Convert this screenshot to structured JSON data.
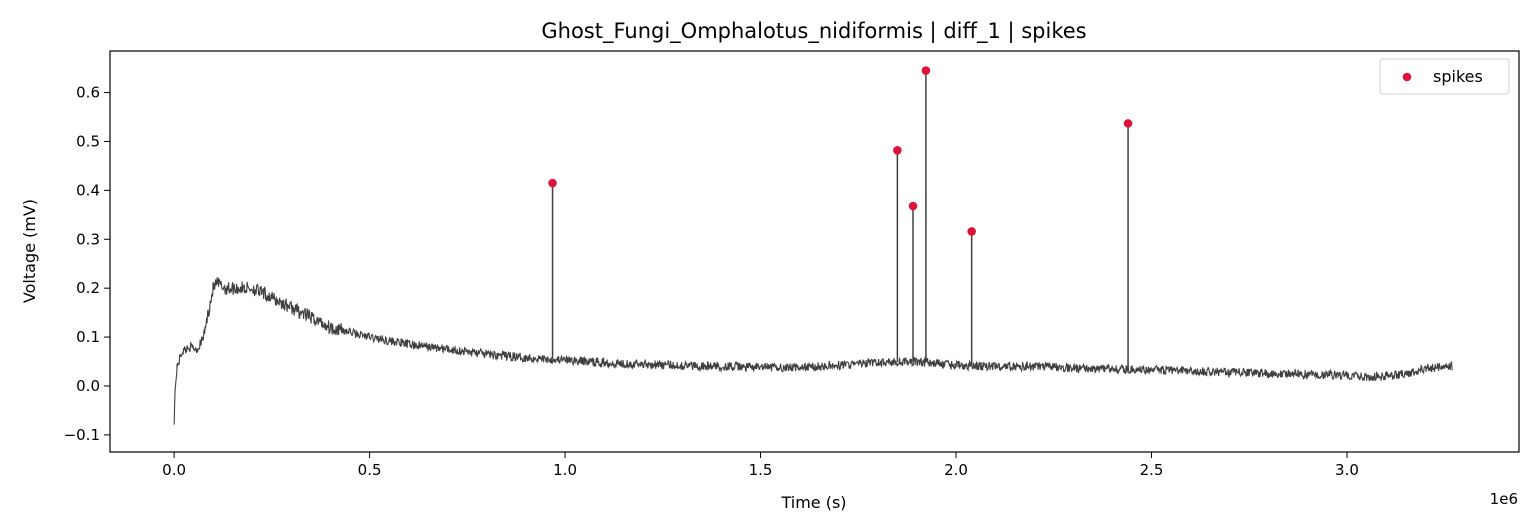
{
  "chart_data": {
    "type": "line",
    "title": "Ghost_Fungi_Omphalotus_nidiformis | diff_1 | spikes",
    "xlabel": "Time (s)",
    "ylabel": "Voltage (mV)",
    "x_offset_label": "1e6",
    "xlim": [
      -0.164,
      3.44
    ],
    "ylim": [
      -0.135,
      0.685
    ],
    "x_ticks": [
      0.0,
      0.5,
      1.0,
      1.5,
      2.0,
      2.5,
      3.0
    ],
    "x_tick_labels": [
      "0.0",
      "0.5",
      "1.0",
      "1.5",
      "2.0",
      "2.5",
      "3.0"
    ],
    "y_ticks": [
      -0.1,
      0.0,
      0.1,
      0.2,
      0.3,
      0.4,
      0.5,
      0.6
    ],
    "y_tick_labels": [
      "−0.1",
      "0.0",
      "0.1",
      "0.2",
      "0.3",
      "0.4",
      "0.5",
      "0.6"
    ],
    "grid": false,
    "legend_position": "top-right",
    "colors": {
      "signal": "#404040",
      "spikes": "#dc143c"
    },
    "series": [
      {
        "type": "line",
        "x": [
          0.0,
          0.003,
          0.008,
          0.02,
          0.04,
          0.06,
          0.075,
          0.09,
          0.1,
          0.11,
          0.13,
          0.16,
          0.2,
          0.25,
          0.3,
          0.35,
          0.4,
          0.5,
          0.6,
          0.7,
          0.8,
          0.9,
          1.0,
          1.1,
          1.2,
          1.3,
          1.4,
          1.5,
          1.6,
          1.7,
          1.8,
          1.9,
          2.0,
          2.1,
          2.2,
          2.3,
          2.4,
          2.5,
          2.6,
          2.7,
          2.8,
          2.9,
          3.0,
          3.05,
          3.1,
          3.15,
          3.2,
          3.25,
          3.27
        ],
        "values": [
          -0.07,
          0.0,
          0.04,
          0.07,
          0.08,
          0.075,
          0.1,
          0.16,
          0.2,
          0.21,
          0.2,
          0.2,
          0.2,
          0.18,
          0.16,
          0.14,
          0.12,
          0.1,
          0.085,
          0.075,
          0.065,
          0.058,
          0.053,
          0.048,
          0.045,
          0.042,
          0.04,
          0.038,
          0.038,
          0.042,
          0.048,
          0.05,
          0.042,
          0.04,
          0.04,
          0.037,
          0.035,
          0.033,
          0.03,
          0.028,
          0.026,
          0.024,
          0.022,
          0.018,
          0.02,
          0.025,
          0.035,
          0.04,
          0.04
        ]
      },
      {
        "type": "scatter",
        "name": "spikes",
        "x": [
          0.968,
          1.85,
          1.89,
          1.923,
          2.04,
          2.44
        ],
        "values": [
          0.415,
          0.482,
          0.368,
          0.645,
          0.316,
          0.537
        ]
      }
    ]
  }
}
